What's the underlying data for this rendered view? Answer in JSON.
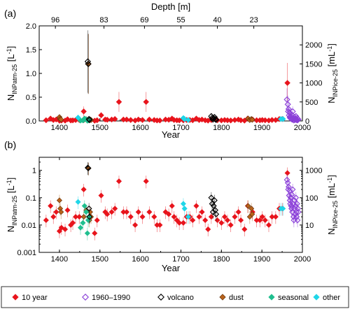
{
  "colors": {
    "ten_year": "#e8141c",
    "modern": "#8a3fd8",
    "volcano": "#000000",
    "dust": "#b8621b",
    "seasonal": "#1fbf8f",
    "other": "#1fd6e8"
  },
  "legend": [
    {
      "key": "ten_year",
      "label": "10 year",
      "fill": true
    },
    {
      "key": "modern",
      "label": "1960–1990",
      "fill": false
    },
    {
      "key": "volcano",
      "label": "volcano",
      "fill": false
    },
    {
      "key": "dust",
      "label": "dust",
      "fill": true
    },
    {
      "key": "seasonal",
      "label": "seasonal",
      "fill": true
    },
    {
      "key": "other",
      "label": "other",
      "fill": true
    }
  ],
  "chart_data": [
    {
      "panel": "(a)",
      "type": "scatter",
      "xlabel": "Year",
      "ylabel_main": "N",
      "ylabel_sub": "INPatm-25",
      "ylabel_unit": " [L",
      "ylabel_sup": "-1",
      "ylabel_end": "]",
      "y2label_main": "N",
      "y2label_sub": "INPice-25",
      "y2label_unit": " [mL",
      "y2label_sup": "-1",
      "y2label_end": "]",
      "top_xlabel": "Depth [m]",
      "xlim": [
        1350,
        2000
      ],
      "ylim": [
        0,
        2.0
      ],
      "y2lim": [
        0,
        2500
      ],
      "xticks": [
        1400,
        1500,
        1600,
        1700,
        1800,
        1900,
        2000
      ],
      "yticks": [
        "0.0",
        "0.5",
        "1.0",
        "1.5",
        "2.0"
      ],
      "y2ticks": [
        "0",
        "500",
        "1000",
        "1500",
        "2000"
      ],
      "top_ticks": [
        {
          "year": 1390,
          "label": "96"
        },
        {
          "year": 1510,
          "label": "83"
        },
        {
          "year": 1610,
          "label": "69"
        },
        {
          "year": 1700,
          "label": "55"
        },
        {
          "year": 1790,
          "label": "40"
        },
        {
          "year": 1880,
          "label": "23"
        }
      ],
      "series": [
        {
          "key": "ten_year",
          "x": [
            1367,
            1378,
            1385,
            1392,
            1400,
            1405,
            1414,
            1420,
            1428,
            1433,
            1440,
            1449,
            1460,
            1487,
            1493,
            1503,
            1513,
            1518,
            1529,
            1537,
            1547,
            1558,
            1566,
            1576,
            1587,
            1595,
            1605,
            1614,
            1622,
            1634,
            1641,
            1648,
            1662,
            1670,
            1678,
            1683,
            1690,
            1696,
            1706,
            1714,
            1722,
            1729,
            1738,
            1745,
            1752,
            1760,
            1767,
            1775,
            1790,
            1800,
            1808,
            1815,
            1823,
            1833,
            1842,
            1848,
            1857,
            1865,
            1877,
            1887,
            1895,
            1901,
            1908,
            1917,
            1925,
            1934,
            1943,
            1951,
            1963
          ],
          "y": [
            0.015,
            0.05,
            0.02,
            0.03,
            0.006,
            0.008,
            0.007,
            0.035,
            0.01,
            0.012,
            0.02,
            0.02,
            0.2,
            0.005,
            0.015,
            0.12,
            0.03,
            0.025,
            0.03,
            0.04,
            0.4,
            0.03,
            0.03,
            0.02,
            0.01,
            0.03,
            0.02,
            0.4,
            0.03,
            0.02,
            0.01,
            0.01,
            0.03,
            0.025,
            0.05,
            0.02,
            0.015,
            0.012,
            0.012,
            0.02,
            0.02,
            0.015,
            0.05,
            0.02,
            0.03,
            0.015,
            0.007,
            0.02,
            0.015,
            0.012,
            0.02,
            0.015,
            0.01,
            0.02,
            0.03,
            0.015,
            0.007,
            0.05,
            0.03,
            0.015,
            0.015,
            0.02,
            0.015,
            0.01,
            0.02,
            0.02,
            0.04,
            0.04,
            0.8
          ]
        },
        {
          "key": "modern",
          "x": [
            1962,
            1964,
            1965,
            1966,
            1967,
            1968,
            1969,
            1970,
            1971,
            1972,
            1973,
            1974,
            1975,
            1976,
            1977,
            1978,
            1979,
            1980,
            1981,
            1982,
            1983,
            1984,
            1985,
            1986,
            1987,
            1988,
            1989,
            1990
          ],
          "y": [
            0.45,
            0.35,
            0.2,
            0.25,
            0.12,
            0.18,
            0.08,
            0.06,
            0.1,
            0.05,
            0.04,
            0.13,
            0.03,
            0.2,
            0.06,
            0.02,
            0.015,
            0.08,
            0.04,
            0.025,
            0.05,
            0.1,
            0.03,
            0.02,
            0.06,
            0.015,
            0.04,
            0.03
          ]
        },
        {
          "key": "volcano",
          "x": [
            1470,
            1471,
            1473,
            1474,
            1775,
            1777,
            1779,
            1781,
            1783,
            1785,
            1787
          ],
          "y": [
            1.25,
            1.2,
            0.04,
            0.02,
            0.1,
            0.06,
            0.03,
            0.05,
            0.08,
            0.035,
            0.025
          ]
        },
        {
          "key": "dust",
          "x": [
            1400,
            1402,
            1404,
            1460,
            1466,
            1472,
            1474,
            1476,
            1478,
            1866,
            1870,
            1874,
            1876
          ],
          "y": [
            0.08,
            0.04,
            0.03,
            0.02,
            0.035,
            1.2,
            0.015,
            0.03,
            0.02,
            0.05,
            0.02,
            0.04,
            0.025
          ]
        },
        {
          "key": "seasonal",
          "x": [
            1452,
            1458,
            1462,
            1466,
            1469,
            1471,
            1473
          ],
          "y": [
            0.008,
            0.012,
            0.05,
            0.03,
            0.005,
            0.015,
            0.02
          ]
        },
        {
          "key": "other",
          "x": [
            1446,
            1706,
            1709,
            1718,
            1947,
            1952
          ],
          "y": [
            0.07,
            0.06,
            0.04,
            0.02,
            0.04,
            0.04
          ]
        }
      ]
    },
    {
      "panel": "(b)",
      "type": "scatter",
      "xlabel": "Year",
      "ylabel_main": "N",
      "ylabel_sub": "INPatm-25",
      "ylabel_unit": " [L",
      "ylabel_sup": "-1",
      "ylabel_end": "]",
      "y2label_main": "N",
      "y2label_sub": "INPice-25",
      "y2label_unit": " [mL",
      "y2label_sup": "-1",
      "y2label_end": "]",
      "yscale": "log",
      "xlim": [
        1350,
        2000
      ],
      "ylim": [
        0.001,
        3
      ],
      "y2lim": [
        1,
        3000
      ],
      "xticks": [
        1400,
        1500,
        1600,
        1700,
        1800,
        1900,
        2000
      ],
      "yticks": [
        {
          "value": 1,
          "label": "1"
        },
        {
          "value": 0.1,
          "label": "0.1"
        },
        {
          "value": 0.01,
          "label": "0.01"
        },
        {
          "value": 0.001,
          "label": "0.001"
        }
      ],
      "y2ticks": [
        {
          "value": 1000,
          "label": "1000"
        },
        {
          "value": 100,
          "label": "100"
        },
        {
          "value": 10,
          "label": "10"
        }
      ]
    }
  ]
}
